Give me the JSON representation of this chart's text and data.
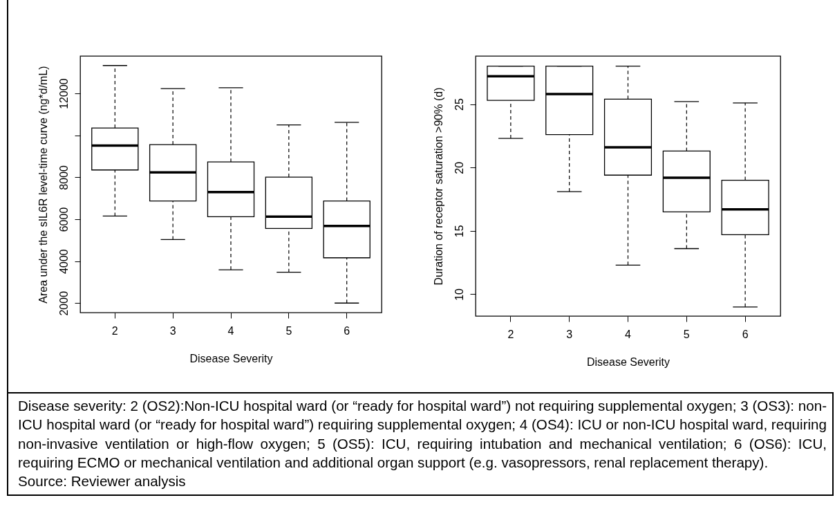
{
  "chart_data": [
    {
      "type": "box",
      "xlabel": "Disease Severity",
      "ylabel": "Area under the sIL6R level-time curve (ng*d/mL)",
      "categories": [
        "2",
        "3",
        "4",
        "5",
        "6"
      ],
      "boxes": [
        {
          "low": 6150,
          "q1": 8350,
          "median": 9510,
          "q3": 10350,
          "high": 13330
        },
        {
          "low": 5030,
          "q1": 6870,
          "median": 8230,
          "q3": 9560,
          "high": 12230
        },
        {
          "low": 3590,
          "q1": 6120,
          "median": 7290,
          "q3": 8730,
          "high": 12270
        },
        {
          "low": 3470,
          "q1": 5560,
          "median": 6120,
          "q3": 8010,
          "high": 10500
        },
        {
          "low": 2000,
          "q1": 4160,
          "median": 5680,
          "q3": 6870,
          "high": 10620
        }
      ],
      "ylim": [
        1547,
        13783
      ],
      "yticks": [
        2000,
        4000,
        6000,
        8000,
        {
          "value": 10000,
          "label": null
        },
        12000
      ]
    },
    {
      "type": "box",
      "xlabel": "Disease Severity",
      "ylabel": "Duration of receptor saturation >90% (d)",
      "categories": [
        "2",
        "3",
        "4",
        "5",
        "6"
      ],
      "boxes": [
        {
          "low": 22.3,
          "q1": 25.3,
          "median": 27.2,
          "q3": 28.0,
          "high": 28.0
        },
        {
          "low": 18.1,
          "q1": 22.6,
          "median": 25.8,
          "q3": 28.0,
          "high": 28.0
        },
        {
          "low": 12.3,
          "q1": 19.4,
          "median": 21.6,
          "q3": 25.4,
          "high": 28.0
        },
        {
          "low": 13.6,
          "q1": 16.5,
          "median": 19.2,
          "q3": 21.3,
          "high": 25.2
        },
        {
          "low": 9.0,
          "q1": 14.7,
          "median": 16.7,
          "q3": 19.0,
          "high": 25.1
        }
      ],
      "ylim": [
        8.28,
        28.8
      ],
      "yticks": [
        10,
        15,
        20,
        25
      ]
    },
    {
      "type": "other",
      "annotations": [
        "Disease severity: 2 (OS2):Non-ICU hospital ward (or “ready for hospital ward”) not requiring supplemental oxygen; 3 (OS3): non-ICU hospital ward (or “ready for hospital ward”) requiring supplemental oxygen; 4 (OS4): ICU or non-ICU hospital ward, requiring non-invasive ventilation or high-flow oxygen; 5 (OS5): ICU, requiring intubation and mechanical ventilation; 6 (OS6): ICU, requiring ECMO or mechanical ventilation and additional organ support (e.g. vasopressors, renal replacement therapy).",
        "Source: Reviewer analysis"
      ]
    }
  ]
}
